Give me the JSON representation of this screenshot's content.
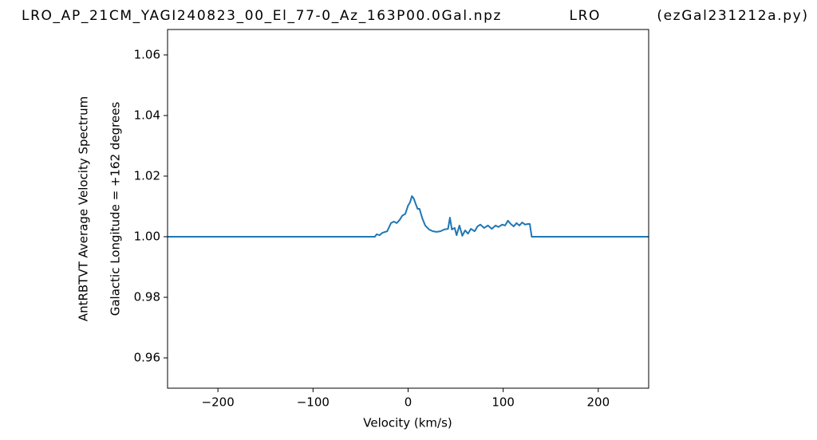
{
  "chart_data": {
    "type": "line",
    "title": "LRO_AP_21CM_YAGI240823_00_El_77-0_Az_163P00.0Gal.npz            LRO          (ezGal231212a.py)",
    "ylabel": [
      "AntRBTVT Average Velocity Spectrum",
      "Galactic Longitude = +162 degrees"
    ],
    "xlabel": "Velocity (km/s)",
    "x": [
      -253,
      -35,
      -33,
      -30,
      -27,
      -22,
      -18,
      -15,
      -12,
      -9,
      -6,
      -3,
      0,
      2,
      4,
      6,
      8,
      10,
      12,
      15,
      18,
      22,
      26,
      30,
      34,
      38,
      42,
      44,
      46,
      49,
      51,
      54,
      57,
      60,
      63,
      66,
      70,
      73,
      76,
      80,
      84,
      88,
      92,
      95,
      99,
      102,
      105,
      108,
      111,
      114,
      117,
      120,
      123,
      126,
      128,
      130,
      253
    ],
    "series": [
      {
        "name": null,
        "color": "#1f77b4",
        "values": [
          1.0,
          1.0,
          1.0008,
          1.0005,
          1.0013,
          1.0018,
          1.0045,
          1.005,
          1.0045,
          1.0055,
          1.007,
          1.0075,
          1.0103,
          1.0113,
          1.0134,
          1.0126,
          1.0108,
          1.0092,
          1.0092,
          1.006,
          1.0037,
          1.0024,
          1.0018,
          1.0016,
          1.0018,
          1.0024,
          1.0026,
          1.0063,
          1.0024,
          1.0029,
          1.0005,
          1.0037,
          1.0003,
          1.0021,
          1.001,
          1.0026,
          1.0018,
          1.0034,
          1.004,
          1.0029,
          1.0037,
          1.0026,
          1.0037,
          1.0032,
          1.004,
          1.0037,
          1.0053,
          1.0042,
          1.0034,
          1.0045,
          1.0037,
          1.0047,
          1.004,
          1.0042,
          1.0042,
          1.0,
          1.0
        ]
      }
    ],
    "xlim": [
      -253,
      253
    ],
    "ylim": [
      0.95,
      1.0684
    ],
    "xticks": [
      {
        "value": -200,
        "label": "−200"
      },
      {
        "value": -100,
        "label": "−100"
      },
      0,
      100,
      200
    ],
    "yticks": [
      0.96,
      0.98,
      {
        "value": 1,
        "label": "1.00"
      },
      1.02,
      1.04,
      1.06
    ],
    "grid": false
  }
}
